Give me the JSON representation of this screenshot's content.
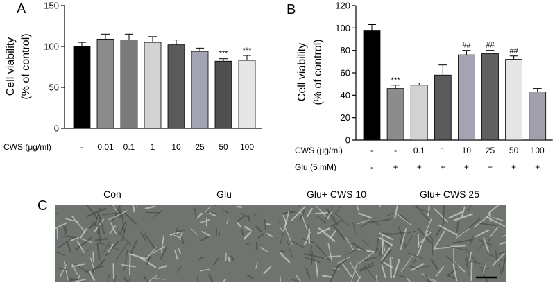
{
  "panel_labels": {
    "a": "A",
    "b": "B",
    "c": "C"
  },
  "chart_data": [
    {
      "type": "bar",
      "panel": "A",
      "ylabel_line1": "Cell viability",
      "ylabel_line2": "(% of control)",
      "ylim": [
        0,
        150
      ],
      "yticks": [
        "0",
        "50",
        "100",
        "150"
      ],
      "row_labels": [
        "CWS (μg/ml)"
      ],
      "categories": [
        "-",
        "0.01",
        "0.1",
        "1",
        "10",
        "25",
        "50",
        "100"
      ],
      "values": [
        100,
        109,
        108,
        105,
        102,
        94,
        82,
        83
      ],
      "errors": [
        5,
        6,
        7,
        7,
        6,
        4,
        3,
        6
      ],
      "annotations": [
        "",
        "",
        "",
        "",
        "",
        "",
        "***",
        "***"
      ],
      "bar_colors": [
        "#000000",
        "#8c8c8c",
        "#7a7a7a",
        "#d2d2d2",
        "#5a5a5a",
        "#a3a3b3",
        "#505050",
        "#e6e6e6"
      ]
    },
    {
      "type": "bar",
      "panel": "B",
      "ylabel_line1": "Cell viability",
      "ylabel_line2": "(% of control)",
      "ylim": [
        0,
        120
      ],
      "yticks": [
        "0",
        "20",
        "40",
        "60",
        "80",
        "100",
        "120"
      ],
      "row_labels": [
        "CWS (μg/ml)",
        "Glu (5 mM)"
      ],
      "categories": [
        "-",
        "-",
        "0.1",
        "1",
        "10",
        "25",
        "50",
        "100"
      ],
      "categories_row2": [
        "-",
        "+",
        "+",
        "+",
        "+",
        "+",
        "+",
        "+"
      ],
      "values": [
        98,
        46,
        49,
        58,
        76,
        77,
        72,
        43
      ],
      "errors": [
        5,
        3,
        2,
        9,
        4,
        3,
        3,
        3
      ],
      "annotations": [
        "",
        "***",
        "",
        "",
        "##",
        "##",
        "##",
        ""
      ],
      "bar_colors": [
        "#000000",
        "#8c8c8c",
        "#d2d2d2",
        "#5a5a5a",
        "#a3a3b3",
        "#606060",
        "#e6e6e6",
        "#a0a0ac"
      ]
    }
  ],
  "micrographs": [
    {
      "title": "Con"
    },
    {
      "title": "Glu"
    },
    {
      "title": "Glu+ CWS 10"
    },
    {
      "title": "Glu+ CWS 25"
    }
  ]
}
